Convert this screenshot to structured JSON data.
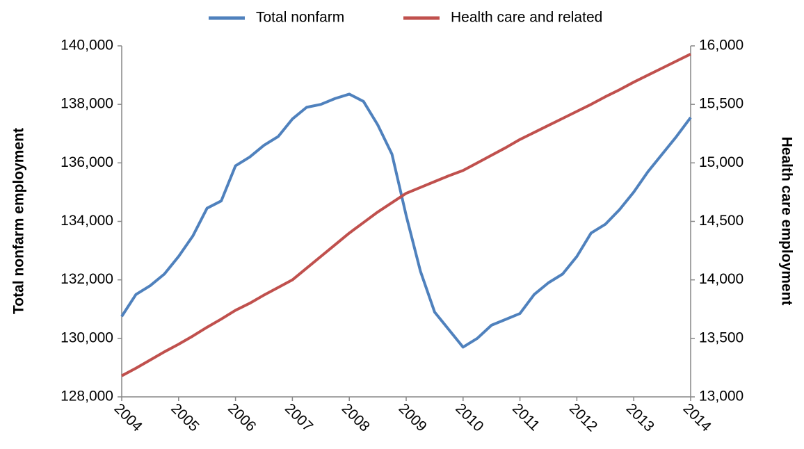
{
  "chart_data": {
    "type": "line",
    "x": [
      2004,
      2004.25,
      2004.5,
      2004.75,
      2005,
      2005.25,
      2005.5,
      2005.75,
      2006,
      2006.25,
      2006.5,
      2006.75,
      2007,
      2007.25,
      2007.5,
      2007.75,
      2008,
      2008.25,
      2008.5,
      2008.75,
      2009,
      2009.25,
      2009.5,
      2009.75,
      2010,
      2010.25,
      2010.5,
      2010.75,
      2011,
      2011.25,
      2011.5,
      2011.75,
      2012,
      2012.25,
      2012.5,
      2012.75,
      2013,
      2013.25,
      2013.5,
      2013.75,
      2014
    ],
    "series": [
      {
        "name": "Total nonfarm",
        "color": "#4f81bd",
        "values": [
          130750,
          131500,
          131800,
          132200,
          132800,
          133500,
          134450,
          134700,
          135900,
          136200,
          136600,
          136900,
          137500,
          137900,
          138000,
          138200,
          138350,
          138100,
          137300,
          136300,
          134200,
          132300,
          130900,
          130300,
          129700,
          130000,
          130450,
          130650,
          130850,
          131500,
          131900,
          132200,
          132800,
          133600,
          133900,
          134400,
          135000,
          135700,
          136300,
          136900,
          137550
        ]
      },
      {
        "name": "Health care and related",
        "color": "#c0504d",
        "axis": "y2",
        "values": [
          13180,
          13245,
          13315,
          13385,
          13450,
          13520,
          13595,
          13665,
          13740,
          13800,
          13870,
          13935,
          14000,
          14100,
          14200,
          14300,
          14400,
          14490,
          14580,
          14660,
          14740,
          14790,
          14840,
          14890,
          14935,
          15000,
          15065,
          15130,
          15200,
          15260,
          15320,
          15380,
          15440,
          15500,
          15565,
          15625,
          15690,
          15750,
          15810,
          15870,
          15930
        ]
      }
    ],
    "y_label": "Total nonfarm employment",
    "y2_label": "Health care employment",
    "xlim": [
      2004,
      2014
    ],
    "xticks": [
      2004,
      2005,
      2006,
      2007,
      2008,
      2009,
      2010,
      2011,
      2012,
      2013,
      2014
    ],
    "ylim": [
      128000,
      140000
    ],
    "yticks": [
      {
        "value": 128000,
        "label": "128,000"
      },
      {
        "value": 130000,
        "label": "130,000"
      },
      {
        "value": 132000,
        "label": "132,000"
      },
      {
        "value": 134000,
        "label": "134,000"
      },
      {
        "value": 136000,
        "label": "136,000"
      },
      {
        "value": 138000,
        "label": "138,000"
      },
      {
        "value": 140000,
        "label": "140,000"
      }
    ],
    "y2lim": [
      13000,
      16000
    ],
    "y2ticks": [
      {
        "value": 13000,
        "label": "13,000"
      },
      {
        "value": 13500,
        "label": "13,500"
      },
      {
        "value": 14000,
        "label": "14,000"
      },
      {
        "value": 14500,
        "label": "14,500"
      },
      {
        "value": 15000,
        "label": "15,000"
      },
      {
        "value": 15500,
        "label": "15,500"
      },
      {
        "value": 16000,
        "label": "16,000"
      }
    ],
    "grid": false,
    "legend": "top"
  }
}
